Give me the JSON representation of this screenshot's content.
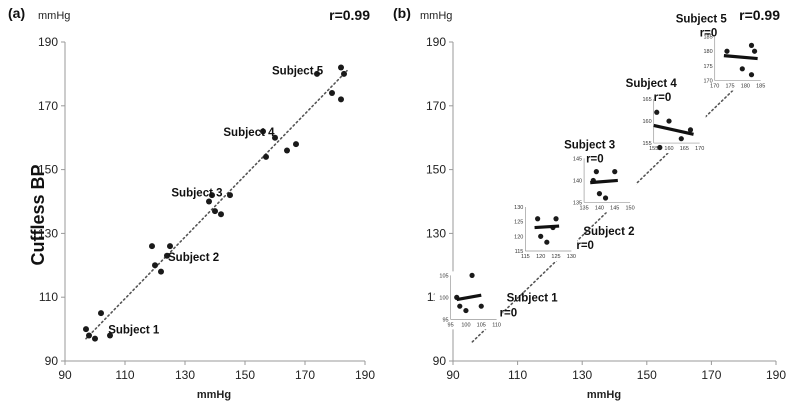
{
  "figure": {
    "ylabel": "Cuffless BP",
    "colors": {
      "points": "#1a1a1a",
      "trend": "#555555",
      "axis": "#999999",
      "fit": "#111111"
    }
  },
  "chart_data": [
    {
      "panel": "(a)",
      "type": "scatter",
      "r_label": "r=0.99",
      "unit_label": "mmHg",
      "xlabel": "mmHg",
      "xlim": [
        90,
        190
      ],
      "ylim": [
        90,
        190
      ],
      "xticks": [
        90,
        110,
        130,
        150,
        170,
        190
      ],
      "yticks": [
        90,
        110,
        130,
        150,
        170,
        190
      ],
      "trendline": {
        "style": "dotted",
        "from": [
          97,
          97
        ],
        "to": [
          184,
          181
        ]
      },
      "series": [
        {
          "name": "Subject 1",
          "points": [
            [
              97,
              100
            ],
            [
              98,
              98
            ],
            [
              100,
              97
            ],
            [
              102,
              105
            ],
            [
              105,
              98
            ]
          ]
        },
        {
          "name": "Subject 2",
          "points": [
            [
              119,
              126
            ],
            [
              120,
              120
            ],
            [
              122,
              118
            ],
            [
              124,
              123
            ],
            [
              125,
              126
            ]
          ]
        },
        {
          "name": "Subject 3",
          "points": [
            [
              138,
              140
            ],
            [
              139,
              142
            ],
            [
              140,
              137
            ],
            [
              142,
              136
            ],
            [
              145,
              142
            ]
          ]
        },
        {
          "name": "Subject 4",
          "points": [
            [
              156,
              162
            ],
            [
              157,
              154
            ],
            [
              160,
              160
            ],
            [
              164,
              156
            ],
            [
              167,
              158
            ]
          ]
        },
        {
          "name": "Subject 5",
          "points": [
            [
              174,
              180
            ],
            [
              179,
              174
            ],
            [
              182,
              182
            ],
            [
              183,
              180
            ],
            [
              182,
              172
            ]
          ]
        }
      ]
    },
    {
      "panel": "(b)",
      "type": "scatter",
      "r_label": "r=0.99",
      "unit_label": "mmHg",
      "xlabel": "mmHg",
      "xlim": [
        90,
        190
      ],
      "ylim": [
        90,
        190
      ],
      "xticks": [
        90,
        110,
        130,
        150,
        170,
        190
      ],
      "yticks": [
        90,
        110,
        130,
        150,
        170,
        190
      ],
      "trendline": {
        "style": "dotted",
        "from": [
          96,
          96
        ],
        "to": [
          185,
          183
        ]
      },
      "subjects": [
        {
          "name": "Subject 1",
          "r": "r=0",
          "inset": {
            "xticks": [
              95,
              100,
              105,
              110
            ],
            "yticks": [
              95,
              100,
              105
            ],
            "points": [
              [
                97,
                100
              ],
              [
                98,
                98
              ],
              [
                100,
                97
              ],
              [
                102,
                105
              ],
              [
                105,
                98
              ]
            ],
            "fit": [
              [
                97,
                99.5
              ],
              [
                105,
                100.5
              ]
            ]
          }
        },
        {
          "name": "Subject 2",
          "r": "r=0",
          "inset": {
            "xticks": [
              115,
              120,
              125,
              130
            ],
            "yticks": [
              115,
              120,
              125,
              130
            ],
            "points": [
              [
                119,
                126
              ],
              [
                120,
                120
              ],
              [
                122,
                118
              ],
              [
                124,
                123
              ],
              [
                125,
                126
              ]
            ],
            "fit": [
              [
                118,
                123
              ],
              [
                126,
                123.5
              ]
            ]
          }
        },
        {
          "name": "Subject 3",
          "r": "r=0",
          "inset": {
            "xticks": [
              135,
              140,
              145,
              150
            ],
            "yticks": [
              135,
              140,
              145
            ],
            "points": [
              [
                138,
                140
              ],
              [
                139,
                142
              ],
              [
                140,
                137
              ],
              [
                142,
                136
              ],
              [
                145,
                142
              ]
            ],
            "fit": [
              [
                137,
                139.5
              ],
              [
                146,
                140
              ]
            ]
          }
        },
        {
          "name": "Subject 4",
          "r": "r=0",
          "inset": {
            "xticks": [
              155,
              160,
              165,
              170
            ],
            "yticks": [
              155,
              160,
              165
            ],
            "points": [
              [
                156,
                162
              ],
              [
                157,
                154
              ],
              [
                160,
                160
              ],
              [
                164,
                156
              ],
              [
                167,
                158
              ]
            ],
            "fit": [
              [
                155,
                159
              ],
              [
                168,
                157
              ]
            ]
          }
        },
        {
          "name": "Subject 5",
          "r": "r=0",
          "inset": {
            "xticks": [
              170,
              175,
              180,
              185
            ],
            "yticks": [
              170,
              175,
              180,
              185
            ],
            "points": [
              [
                174,
                180
              ],
              [
                179,
                174
              ],
              [
                182,
                182
              ],
              [
                183,
                180
              ],
              [
                182,
                172
              ]
            ],
            "fit": [
              [
                173,
                178.5
              ],
              [
                184,
                177.5
              ]
            ]
          }
        }
      ]
    }
  ]
}
